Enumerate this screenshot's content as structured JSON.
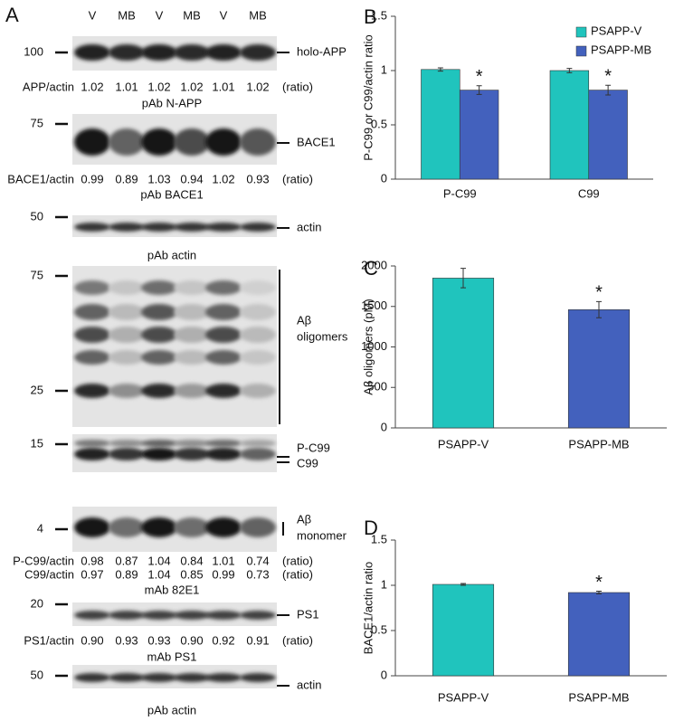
{
  "blot_panel": {
    "label": "A",
    "lanes": [
      "V",
      "MB",
      "V",
      "MB",
      "V",
      "MB"
    ],
    "markers": [
      "100",
      "75",
      "50",
      "75",
      "25",
      "15",
      "4",
      "20",
      "50"
    ],
    "bands": [
      "holo-APP",
      "BACE1",
      "actin",
      "Aβ",
      "oligomers",
      "P-C99",
      "C99",
      "Aβ",
      "monomer",
      "PS1",
      "actin"
    ],
    "ratios": [
      {
        "label": "APP/actin",
        "values": [
          "1.02",
          "1.01",
          "1.02",
          "1.02",
          "1.01",
          "1.02"
        ],
        "unit": "(ratio)"
      },
      {
        "label": "BACE1/actin",
        "values": [
          "0.99",
          "0.89",
          "1.03",
          "0.94",
          "1.02",
          "0.93"
        ],
        "unit": "(ratio)"
      },
      {
        "label": "P-C99/actin",
        "values": [
          "0.98",
          "0.87",
          "1.04",
          "0.84",
          "1.01",
          "0.74"
        ],
        "unit": "(ratio)"
      },
      {
        "label": "C99/actin",
        "values": [
          "0.97",
          "0.89",
          "1.04",
          "0.85",
          "0.99",
          "0.73"
        ],
        "unit": "(ratio)"
      },
      {
        "label": "PS1/actin",
        "values": [
          "0.90",
          "0.93",
          "0.93",
          "0.90",
          "0.92",
          "0.91"
        ],
        "unit": "(ratio)"
      }
    ],
    "antibodies": [
      "pAb N-APP",
      "pAb BACE1",
      "pAb actin",
      "mAb 82E1",
      "mAb PS1",
      "pAb actin"
    ]
  },
  "chart_data": [
    {
      "type": "bar",
      "panel": "B",
      "y_label": "P-C99 or C99/actin ratio",
      "categories": [
        "P-C99",
        "C99"
      ],
      "series": [
        {
          "name": "PSAPP-V",
          "color": "#20c4bd",
          "values": [
            1.01,
            1.0
          ],
          "errors": [
            0.015,
            0.02
          ],
          "significance": [
            null,
            null
          ]
        },
        {
          "name": "PSAPP-MB",
          "color": "#4361bd",
          "values": [
            0.82,
            0.82
          ],
          "errors": [
            0.04,
            0.045
          ],
          "significance": [
            "*",
            "*"
          ]
        }
      ],
      "ylim": [
        0,
        1.5
      ],
      "yticks": [
        0,
        0.5,
        1,
        1.5
      ],
      "legend": "top-right"
    },
    {
      "type": "bar",
      "panel": "C",
      "y_label": "Aβ oligomers (pM)",
      "categories": [
        "PSAPP-V",
        "PSAPP-MB"
      ],
      "values": [
        1850,
        1460
      ],
      "errors": [
        120,
        100
      ],
      "colors": [
        "#20c4bd",
        "#4361bd"
      ],
      "significance": [
        null,
        "*"
      ],
      "ylim": [
        0,
        2000
      ],
      "yticks": [
        0,
        500,
        1000,
        1500,
        2000
      ]
    },
    {
      "type": "bar",
      "panel": "D",
      "y_label": "BACE1/actin ratio",
      "categories": [
        "PSAPP-V",
        "PSAPP-MB"
      ],
      "values": [
        1.01,
        0.92
      ],
      "errors": [
        0.01,
        0.015
      ],
      "colors": [
        "#20c4bd",
        "#4361bd"
      ],
      "significance": [
        null,
        "*"
      ],
      "ylim": [
        0,
        1.5
      ],
      "yticks": [
        0,
        0.5,
        1,
        1.5
      ]
    }
  ]
}
